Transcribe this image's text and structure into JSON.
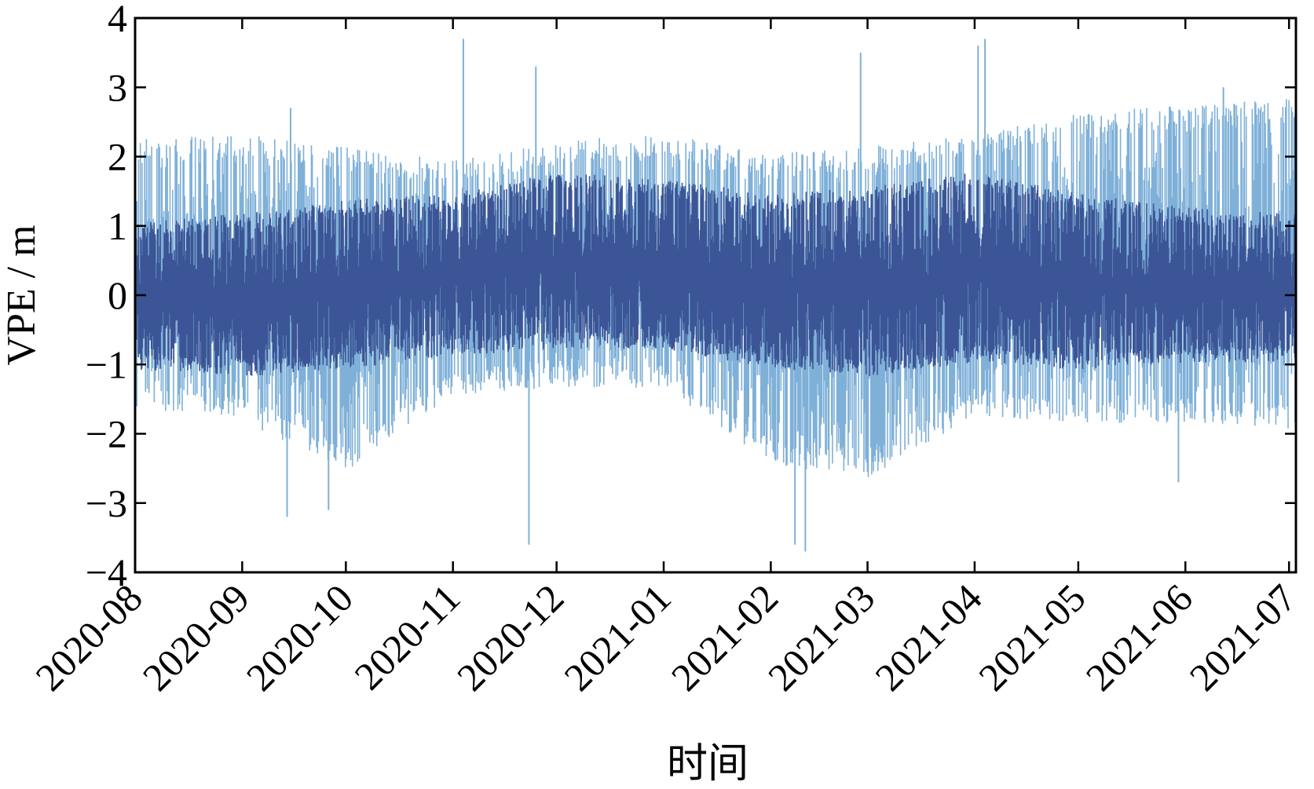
{
  "chart_data": {
    "type": "line",
    "title": "",
    "xlabel": "时间",
    "ylabel": "VPE / m",
    "x_ticks": [
      "2020-08",
      "2020-09",
      "2020-10",
      "2020-11",
      "2020-12",
      "2021-01",
      "2021-02",
      "2021-03",
      "2021-04",
      "2021-05",
      "2021-06",
      "2021-07"
    ],
    "y_ticks": [
      4,
      3,
      2,
      1,
      0,
      -1,
      -2,
      -3,
      -4
    ],
    "y_tick_labels": [
      "4",
      "3",
      "2",
      "1",
      "0",
      "−1",
      "−2",
      "−3",
      "−4"
    ],
    "ylim": [
      -4,
      4
    ],
    "xlim": [
      "2020-08-01",
      "2021-07-03"
    ],
    "grid": false,
    "series": [
      {
        "color": "#7fb0d8",
        "band": {
          "x": [
            "2020-08-01",
            "2020-09-01",
            "2020-10-01",
            "2020-11-01",
            "2020-12-01",
            "2021-01-01",
            "2021-02-01",
            "2021-03-01",
            "2021-04-01",
            "2021-05-01",
            "2021-06-01",
            "2021-07-01"
          ],
          "upper": [
            2.0,
            2.1,
            1.9,
            1.7,
            2.0,
            2.1,
            1.8,
            1.9,
            2.1,
            2.4,
            2.5,
            2.6
          ],
          "lower": [
            -1.4,
            -1.6,
            -2.3,
            -1.2,
            -1.1,
            -1.1,
            -2.2,
            -2.4,
            -1.5,
            -1.6,
            -1.6,
            -1.7
          ]
        },
        "spikes": [
          {
            "x": "2020-09-15",
            "y": 2.7
          },
          {
            "x": "2020-09-14",
            "y": -3.2
          },
          {
            "x": "2020-09-26",
            "y": -3.1
          },
          {
            "x": "2020-11-04",
            "y": 3.7
          },
          {
            "x": "2020-11-25",
            "y": 3.3
          },
          {
            "x": "2020-11-23",
            "y": -3.6
          },
          {
            "x": "2021-02-08",
            "y": -3.6
          },
          {
            "x": "2021-02-11",
            "y": -3.7
          },
          {
            "x": "2021-02-27",
            "y": 3.5
          },
          {
            "x": "2021-04-04",
            "y": 3.7
          },
          {
            "x": "2021-04-02",
            "y": 3.6
          },
          {
            "x": "2021-05-30",
            "y": -2.7
          },
          {
            "x": "2021-06-12",
            "y": 3.0
          }
        ]
      },
      {
        "color": "#3b5596",
        "band": {
          "x": [
            "2020-08-01",
            "2020-09-01",
            "2020-10-01",
            "2020-11-01",
            "2020-12-01",
            "2021-01-01",
            "2021-02-01",
            "2021-03-01",
            "2021-04-01",
            "2021-05-01",
            "2021-06-01",
            "2021-07-01"
          ],
          "upper": [
            0.9,
            1.0,
            1.2,
            1.3,
            1.6,
            1.5,
            1.3,
            1.4,
            1.6,
            1.3,
            1.1,
            1.0
          ],
          "lower": [
            -0.9,
            -1.0,
            -0.9,
            -0.7,
            -0.6,
            -0.6,
            -0.9,
            -1.0,
            -0.8,
            -0.9,
            -0.8,
            -0.8
          ]
        }
      }
    ]
  }
}
